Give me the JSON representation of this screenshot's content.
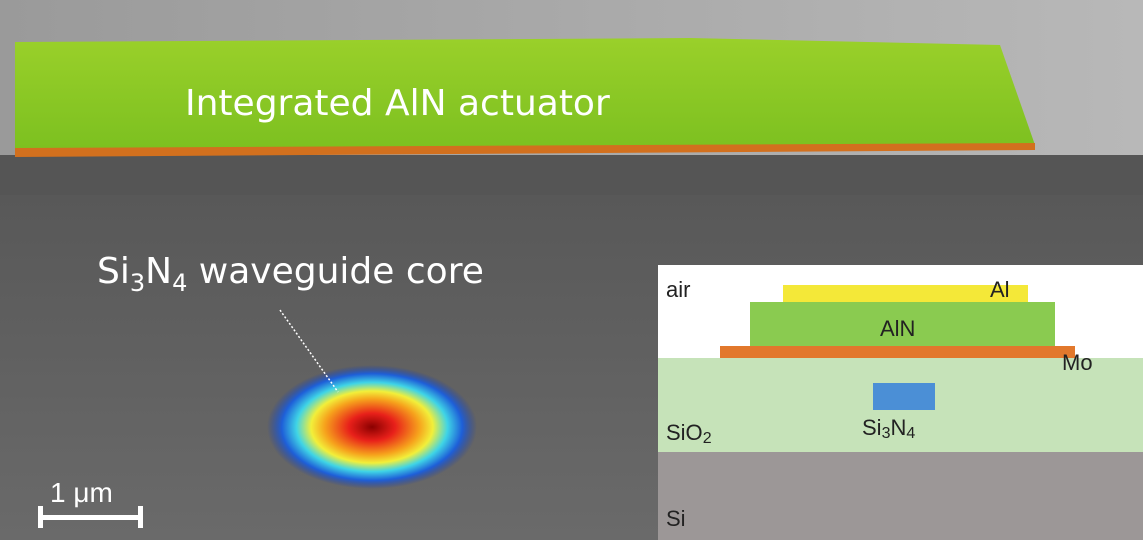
{
  "sem_image": {
    "actuator_label": "Integrated AlN actuator",
    "waveguide_label": [
      "Si",
      "3",
      "N",
      "4",
      " waveguide core"
    ],
    "scale_bar": "1 μm"
  },
  "inset": {
    "air": "air",
    "al": "Al",
    "aln": "AlN",
    "mo": "Mo",
    "sio2": [
      "SiO",
      "2"
    ],
    "si3n4": [
      "Si",
      "3",
      "N",
      "4"
    ],
    "si": "Si"
  }
}
